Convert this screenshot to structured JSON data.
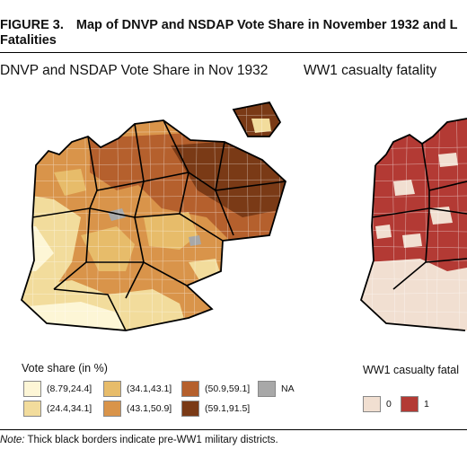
{
  "figure": {
    "label": "FIGURE 3.",
    "title_line1": "Map of DNVP and NSDAP Vote Share in November 1932 and L",
    "title_line2": "Fatalities"
  },
  "left_panel": {
    "title": "DNVP and NSDAP Vote Share in Nov 1932",
    "legend": {
      "title": "Vote share (in %)",
      "items": [
        {
          "label": "(8.79,24.4]",
          "color": "#fdf6d6"
        },
        {
          "label": "(24.4,34.1]",
          "color": "#f2dc9c"
        },
        {
          "label": "(34.1,43.1]",
          "color": "#e7bc6a"
        },
        {
          "label": "(43.1,50.9]",
          "color": "#d9944a"
        },
        {
          "label": "(50.9,59.1]",
          "color": "#b5602d"
        },
        {
          "label": "(59.1,91.5]",
          "color": "#7a3a16"
        },
        {
          "label": "NA",
          "color": "#a8a8a8"
        }
      ]
    }
  },
  "right_panel": {
    "title": "WW1 casualty fatality",
    "legend": {
      "title": "WW1 casualty fatal",
      "items": [
        {
          "label": "0",
          "color": "#f1dfd1"
        },
        {
          "label": "1",
          "color": "#b33a34"
        }
      ]
    }
  },
  "note": {
    "prefix": "Note:",
    "text": " Thick black borders indicate pre-WW1 military districts."
  }
}
